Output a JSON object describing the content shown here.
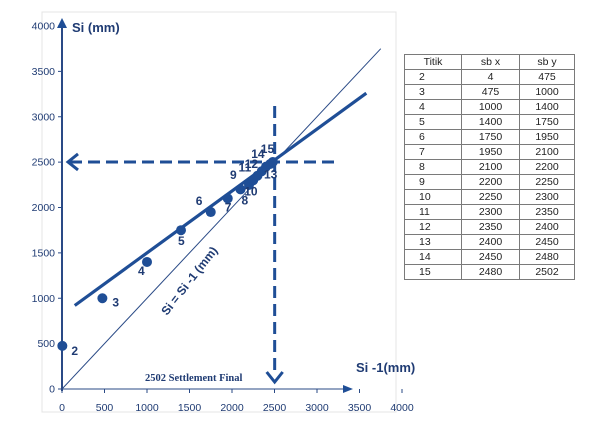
{
  "chart_data": {
    "type": "scatter",
    "xlabel": "Si -1(mm)",
    "ylabel": "Si (mm)",
    "xlim": [
      0,
      4000
    ],
    "ylim": [
      0,
      4000
    ],
    "x_ticks": [
      "0",
      "500",
      "1000",
      "1500",
      "2000",
      "2500",
      "3000",
      "3500",
      "4000"
    ],
    "y_ticks": [
      "0",
      "500",
      "1000",
      "1500",
      "2000",
      "2500",
      "3000",
      "3500",
      "4000"
    ],
    "points": [
      {
        "label": "2",
        "x": 4,
        "y": 475
      },
      {
        "label": "3",
        "x": 475,
        "y": 1000
      },
      {
        "label": "4",
        "x": 1000,
        "y": 1400
      },
      {
        "label": "5",
        "x": 1400,
        "y": 1750
      },
      {
        "label": "6",
        "x": 1750,
        "y": 1950
      },
      {
        "label": "7",
        "x": 1950,
        "y": 2100
      },
      {
        "label": "8",
        "x": 2100,
        "y": 2200
      },
      {
        "label": "9",
        "x": 2200,
        "y": 2250
      },
      {
        "label": "10",
        "x": 2250,
        "y": 2300
      },
      {
        "label": "11",
        "x": 2300,
        "y": 2350
      },
      {
        "label": "12",
        "x": 2350,
        "y": 2400
      },
      {
        "label": "13",
        "x": 2400,
        "y": 2450
      },
      {
        "label": "14",
        "x": 2450,
        "y": 2480
      },
      {
        "label": "15",
        "x": 2480,
        "y": 2502
      }
    ],
    "regression_line": {
      "x": [
        150,
        3580
      ],
      "y": [
        920,
        3260
      ]
    },
    "identity_line": {
      "label": "Si = Si -1 (mm)",
      "x": [
        0,
        3750
      ],
      "y": [
        0,
        3750
      ]
    },
    "settlement_final": 2502,
    "annotation": "2502 Settlement Final",
    "grid": false,
    "colors": {
      "main": "#1f4e96",
      "text": "#1f3b73",
      "thin": "#2a4a86"
    }
  },
  "table": {
    "headers": [
      "Titik",
      "sb x",
      "sb y"
    ],
    "rows": [
      [
        "2",
        "4",
        "475"
      ],
      [
        "3",
        "475",
        "1000"
      ],
      [
        "4",
        "1000",
        "1400"
      ],
      [
        "5",
        "1400",
        "1750"
      ],
      [
        "6",
        "1750",
        "1950"
      ],
      [
        "7",
        "1950",
        "2100"
      ],
      [
        "8",
        "2100",
        "2200"
      ],
      [
        "9",
        "2200",
        "2250"
      ],
      [
        "10",
        "2250",
        "2300"
      ],
      [
        "11",
        "2300",
        "2350"
      ],
      [
        "12",
        "2350",
        "2400"
      ],
      [
        "13",
        "2400",
        "2450"
      ],
      [
        "14",
        "2450",
        "2480"
      ],
      [
        "15",
        "2480",
        "2502"
      ]
    ]
  }
}
